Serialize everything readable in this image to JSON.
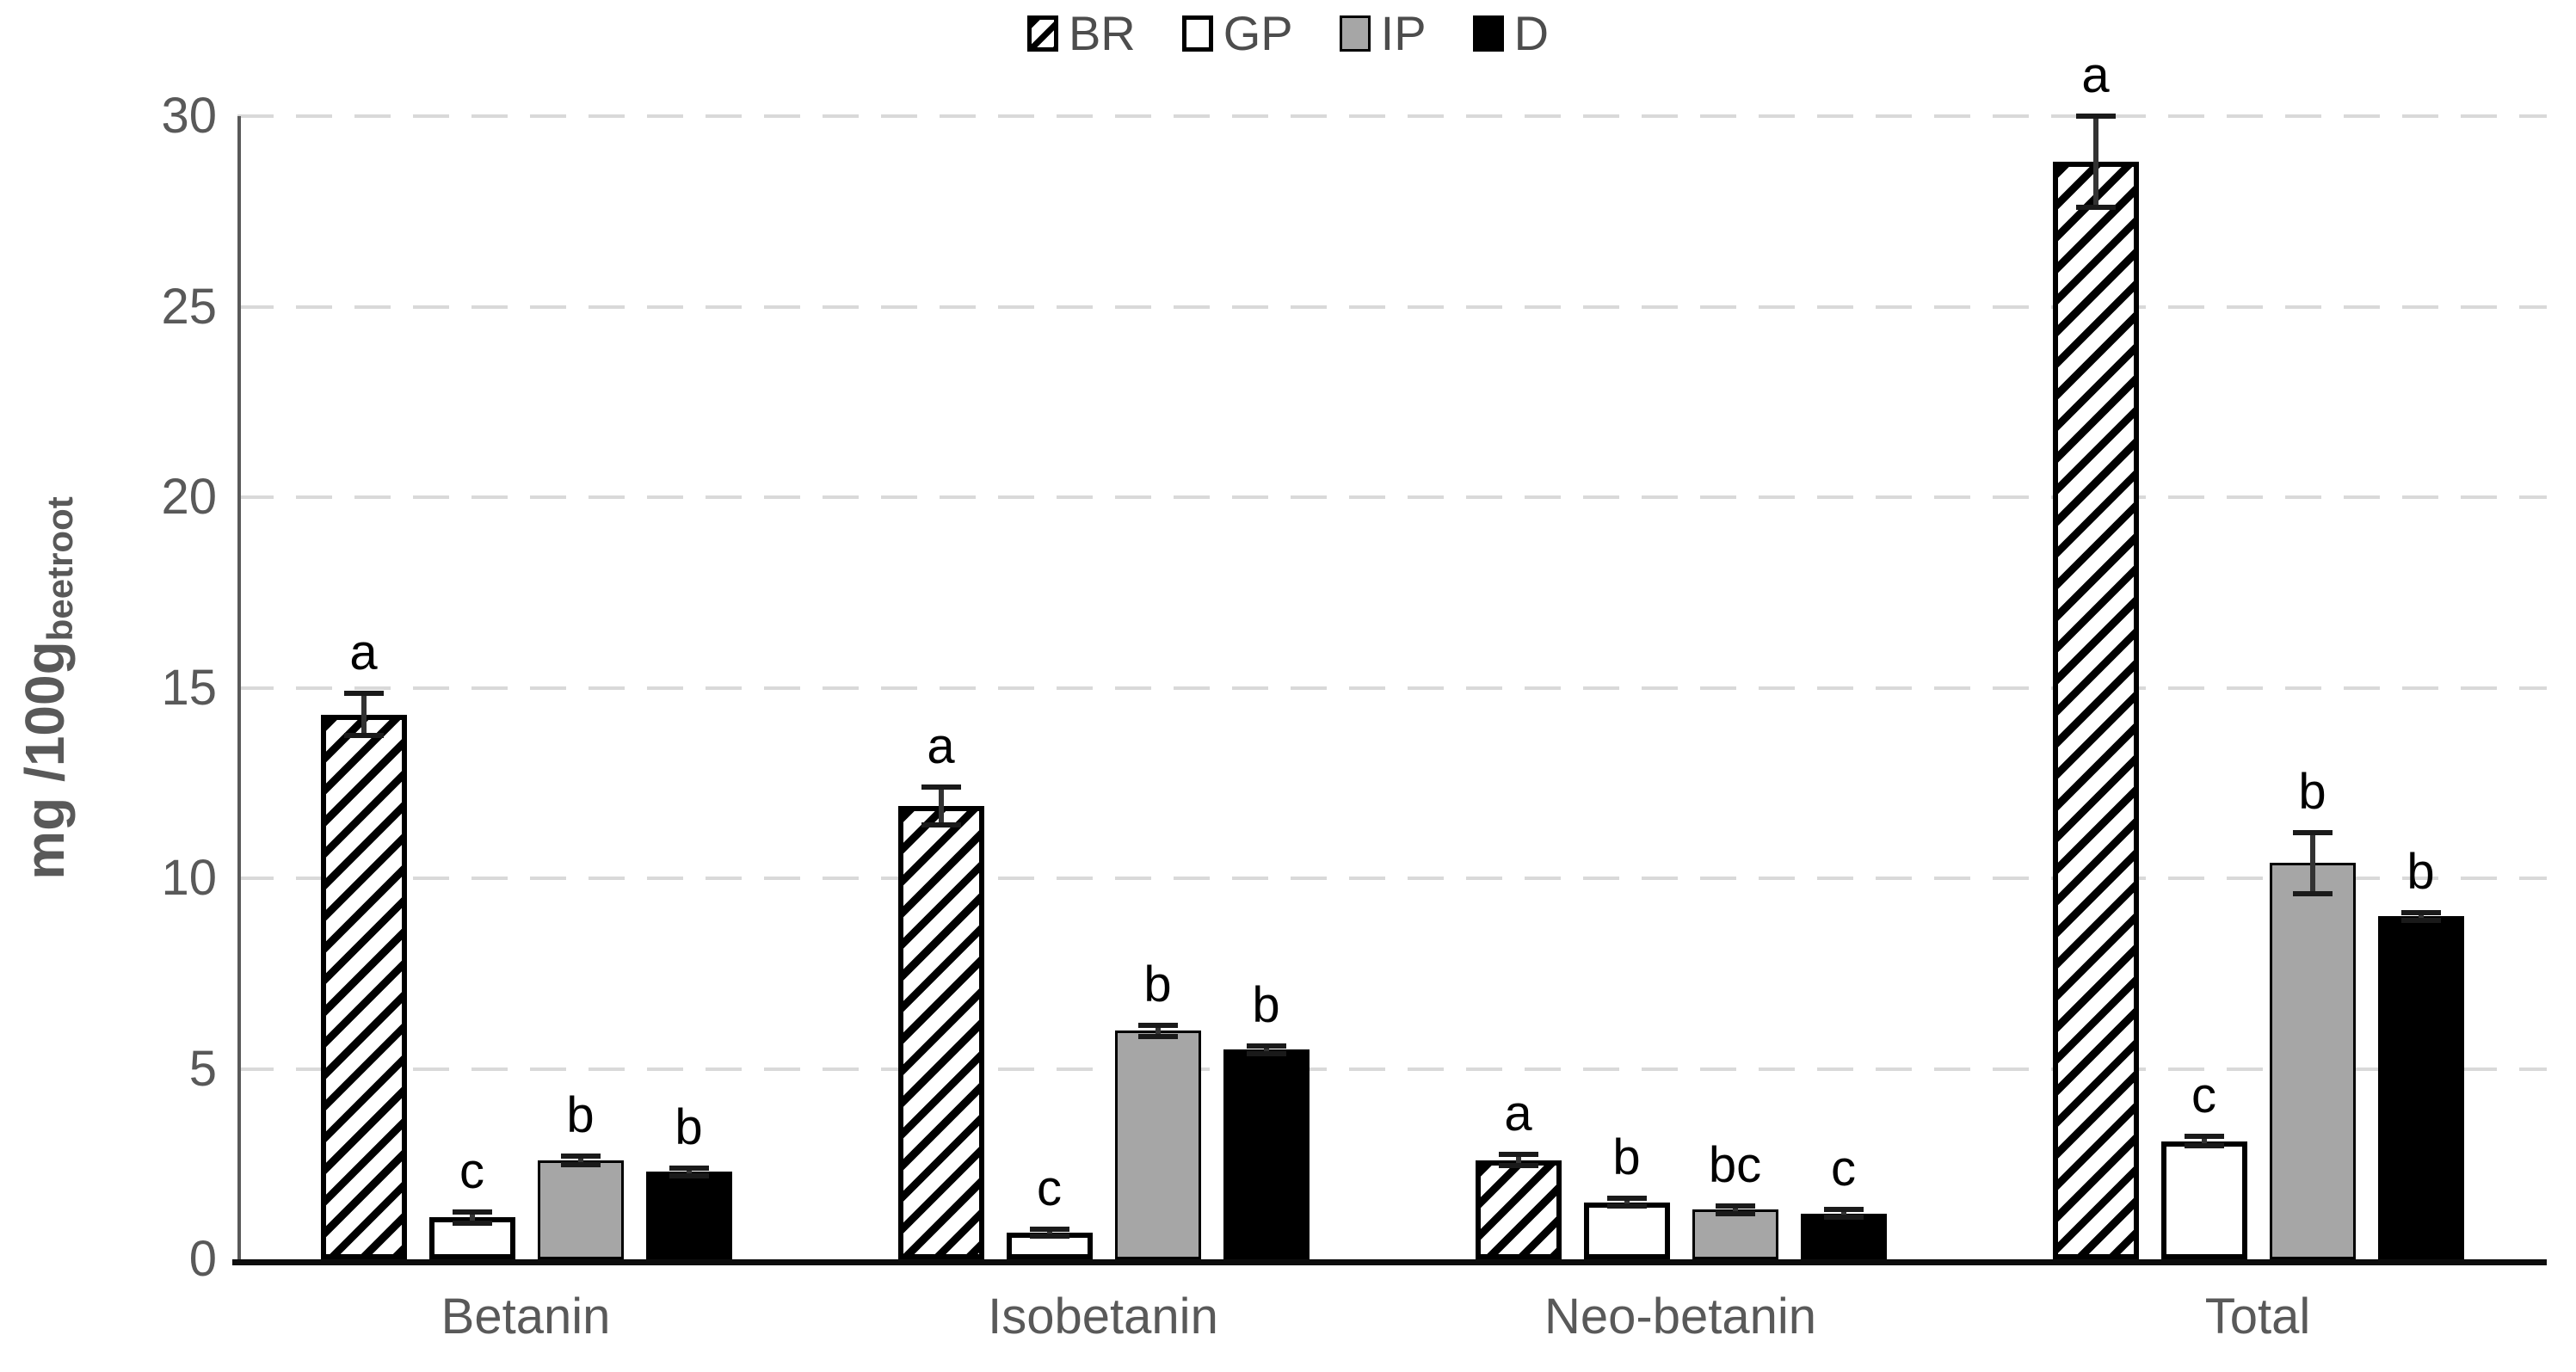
{
  "page": {
    "background": "#ffffff"
  },
  "colors": {
    "text_gray": "#595959",
    "gridline": "#d9d9d9",
    "y_axis_line": "#595959",
    "x_axis_line": "#0d0d0d",
    "bar_gray_fill": "#a6a6a6",
    "bar_black_fill": "#000000",
    "bar_white_fill": "#ffffff",
    "error_bar": "#333333"
  },
  "chart_data": {
    "type": "bar",
    "title": "",
    "ylabel_main": "mg /100g",
    "ylabel_sub": "beetroot",
    "xlabel": "",
    "ylim": [
      0,
      30
    ],
    "yticks": [
      0,
      5,
      10,
      15,
      20,
      25,
      30
    ],
    "grid": "horizontal dashed at every 5 units",
    "legend_position": "top-center",
    "categories": [
      "Betanin",
      "Isobetanin",
      "Neo-betanin",
      "Total"
    ],
    "series": [
      {
        "name": "BR",
        "style": "diagonal-hatch",
        "values": [
          14.3,
          11.9,
          2.6,
          28.8
        ],
        "errors": [
          0.55,
          0.5,
          0.15,
          1.2
        ],
        "letters": [
          "a",
          "a",
          "a",
          "a"
        ]
      },
      {
        "name": "GP",
        "style": "white",
        "values": [
          1.1,
          0.7,
          1.5,
          3.1
        ],
        "errors": [
          0.15,
          0.1,
          0.1,
          0.12
        ],
        "letters": [
          "c",
          "c",
          "b",
          "c"
        ]
      },
      {
        "name": "IP",
        "style": "gray",
        "values": [
          2.6,
          6.0,
          1.3,
          10.4
        ],
        "errors": [
          0.12,
          0.15,
          0.1,
          0.8
        ],
        "letters": [
          "b",
          "b",
          "bc",
          "b"
        ]
      },
      {
        "name": "D",
        "style": "black",
        "values": [
          2.3,
          5.5,
          1.2,
          9.0
        ],
        "errors": [
          0.1,
          0.1,
          0.1,
          0.1
        ],
        "letters": [
          "b",
          "b",
          "c",
          "b"
        ]
      }
    ]
  }
}
